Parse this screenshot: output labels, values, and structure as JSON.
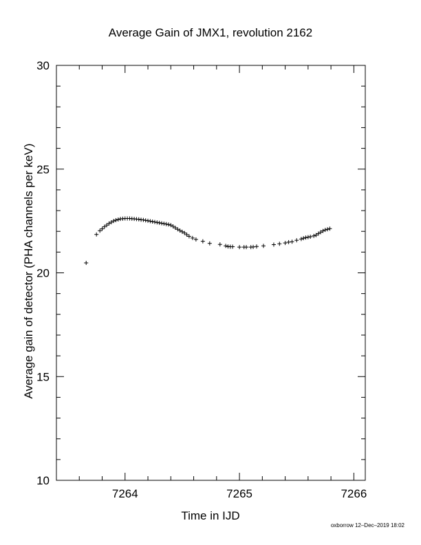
{
  "chart_data": {
    "type": "scatter",
    "title": "Average Gain of JMX1, revolution 2162",
    "xlabel": "Time in IJD",
    "ylabel": "Average gain of detector (PHA channels per keV)",
    "xlim": [
      7263.4,
      7266.1
    ],
    "ylim": [
      10,
      30
    ],
    "xticks": [
      7264,
      7265,
      7266
    ],
    "yticks": [
      10,
      15,
      20,
      25,
      30
    ],
    "marker": "+",
    "grid": false,
    "points": [
      [
        7263.66,
        20.48
      ],
      [
        7263.75,
        21.85
      ],
      [
        7263.78,
        22.03
      ],
      [
        7263.8,
        22.12
      ],
      [
        7263.82,
        22.22
      ],
      [
        7263.84,
        22.3
      ],
      [
        7263.86,
        22.38
      ],
      [
        7263.88,
        22.44
      ],
      [
        7263.9,
        22.5
      ],
      [
        7263.92,
        22.54
      ],
      [
        7263.94,
        22.57
      ],
      [
        7263.96,
        22.6
      ],
      [
        7263.98,
        22.61
      ],
      [
        7264.0,
        22.62
      ],
      [
        7264.02,
        22.62
      ],
      [
        7264.04,
        22.62
      ],
      [
        7264.06,
        22.61
      ],
      [
        7264.08,
        22.6
      ],
      [
        7264.1,
        22.59
      ],
      [
        7264.12,
        22.58
      ],
      [
        7264.14,
        22.56
      ],
      [
        7264.16,
        22.55
      ],
      [
        7264.18,
        22.53
      ],
      [
        7264.2,
        22.51
      ],
      [
        7264.22,
        22.49
      ],
      [
        7264.24,
        22.47
      ],
      [
        7264.26,
        22.45
      ],
      [
        7264.28,
        22.43
      ],
      [
        7264.3,
        22.41
      ],
      [
        7264.32,
        22.39
      ],
      [
        7264.34,
        22.37
      ],
      [
        7264.36,
        22.35
      ],
      [
        7264.38,
        22.33
      ],
      [
        7264.4,
        22.3
      ],
      [
        7264.42,
        22.24
      ],
      [
        7264.44,
        22.17
      ],
      [
        7264.46,
        22.1
      ],
      [
        7264.48,
        22.04
      ],
      [
        7264.5,
        21.98
      ],
      [
        7264.52,
        21.92
      ],
      [
        7264.54,
        21.84
      ],
      [
        7264.56,
        21.76
      ],
      [
        7264.59,
        21.68
      ],
      [
        7264.62,
        21.61
      ],
      [
        7264.68,
        21.52
      ],
      [
        7264.74,
        21.42
      ],
      [
        7264.83,
        21.37
      ],
      [
        7264.88,
        21.3
      ],
      [
        7264.9,
        21.27
      ],
      [
        7264.92,
        21.26
      ],
      [
        7264.94,
        21.26
      ],
      [
        7265.0,
        21.24
      ],
      [
        7265.04,
        21.24
      ],
      [
        7265.06,
        21.24
      ],
      [
        7265.1,
        21.24
      ],
      [
        7265.12,
        21.25
      ],
      [
        7265.15,
        21.27
      ],
      [
        7265.21,
        21.3
      ],
      [
        7265.3,
        21.36
      ],
      [
        7265.35,
        21.4
      ],
      [
        7265.4,
        21.44
      ],
      [
        7265.43,
        21.48
      ],
      [
        7265.46,
        21.5
      ],
      [
        7265.5,
        21.57
      ],
      [
        7265.54,
        21.63
      ],
      [
        7265.56,
        21.67
      ],
      [
        7265.58,
        21.7
      ],
      [
        7265.6,
        21.72
      ],
      [
        7265.62,
        21.74
      ],
      [
        7265.65,
        21.78
      ],
      [
        7265.67,
        21.82
      ],
      [
        7265.69,
        21.89
      ],
      [
        7265.71,
        21.96
      ],
      [
        7265.73,
        22.02
      ],
      [
        7265.75,
        22.07
      ],
      [
        7265.77,
        22.1
      ],
      [
        7265.79,
        22.13
      ]
    ]
  },
  "credit": "oxborrow 12–Dec–2019 18:02"
}
